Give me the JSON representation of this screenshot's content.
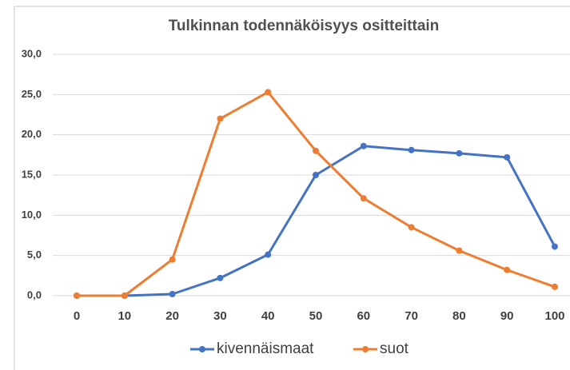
{
  "chart_data": {
    "type": "line",
    "title": "Tulkinnan todennäköisyys ositteittain",
    "categories": [
      "0",
      "10",
      "20",
      "30",
      "40",
      "50",
      "60",
      "70",
      "80",
      "90",
      "100"
    ],
    "series": [
      {
        "name": "kivennäismaat",
        "color": "#4472c4",
        "values": [
          0,
          0,
          0.2,
          2.2,
          5.1,
          15.0,
          18.6,
          18.1,
          17.7,
          17.2,
          6.1
        ]
      },
      {
        "name": "suot",
        "color": "#ed7d31",
        "values": [
          0,
          0,
          4.5,
          22.0,
          25.3,
          18.0,
          12.1,
          8.5,
          5.6,
          3.2,
          1.1
        ]
      }
    ],
    "ylim": [
      0,
      30
    ],
    "yticks": [
      {
        "value": 0,
        "label": "0,0"
      },
      {
        "value": 5,
        "label": "5,0"
      },
      {
        "value": 10,
        "label": "10,0"
      },
      {
        "value": 15,
        "label": "15,0"
      },
      {
        "value": 20,
        "label": "20,0"
      },
      {
        "value": 25,
        "label": "25,0"
      },
      {
        "value": 30,
        "label": "30,0"
      }
    ],
    "grid": true,
    "legend": "bottom"
  }
}
